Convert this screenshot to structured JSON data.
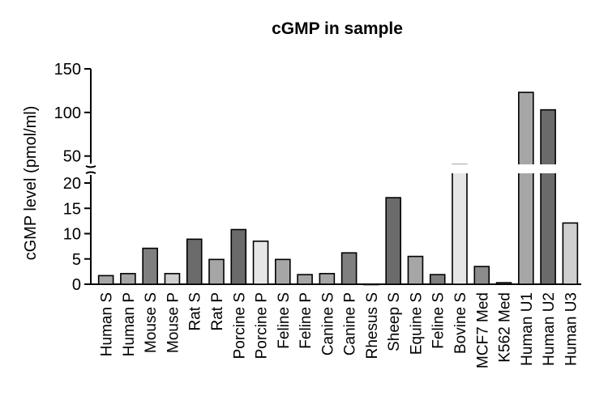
{
  "chart_data": {
    "type": "bar",
    "title": "cGMP in sample",
    "ylabel": "cGMP level (pmol/ml)",
    "xlabel": "",
    "y_axis_break": true,
    "ylim_lower": [
      0,
      20
    ],
    "ylim_upper": [
      20,
      150
    ],
    "yticks_lower": [
      0,
      5,
      10,
      15,
      20
    ],
    "yticks_upper": [
      50,
      100,
      150
    ],
    "yticks_lower_labels": [
      "0",
      "5",
      "10",
      "15",
      "20"
    ],
    "yticks_upper_labels": [
      "50",
      "100",
      "150"
    ],
    "categories": [
      "Human S",
      "Human P",
      "Mouse S",
      "Mouse P",
      "Rat S",
      "Rat P",
      "Porcine S",
      "Porcine P",
      "Feline S",
      "Feline P",
      "Canine S",
      "Canine P",
      "Rhesus S",
      "Sheep S",
      "Equine S",
      "Feline S",
      "Bovine S",
      "MCF7 Med",
      "K562 Med",
      "Human U1",
      "Human U2",
      "Human U3"
    ],
    "values": [
      1.7,
      2.1,
      7.1,
      2.1,
      8.9,
      4.9,
      10.8,
      8.5,
      4.9,
      1.9,
      2.1,
      6.2,
      0,
      17.1,
      5.5,
      1.9,
      40,
      3.5,
      0.3,
      123,
      103,
      12.1
    ],
    "colors": [
      "#a6a6a6",
      "#a6a6a6",
      "#7f7f7f",
      "#cfcfcf",
      "#6b6b6b",
      "#a6a6a6",
      "#6b6b6b",
      "#e6e6e6",
      "#a6a6a6",
      "#a6a6a6",
      "#a6a6a6",
      "#7f7f7f",
      "#a6a6a6",
      "#6b6b6b",
      "#a6a6a6",
      "#7f7f7f",
      "#e6e6e6",
      "#8c8c8c",
      "#8c8c8c",
      "#a6a6a6",
      "#6b6b6b",
      "#cfcfcf"
    ]
  }
}
